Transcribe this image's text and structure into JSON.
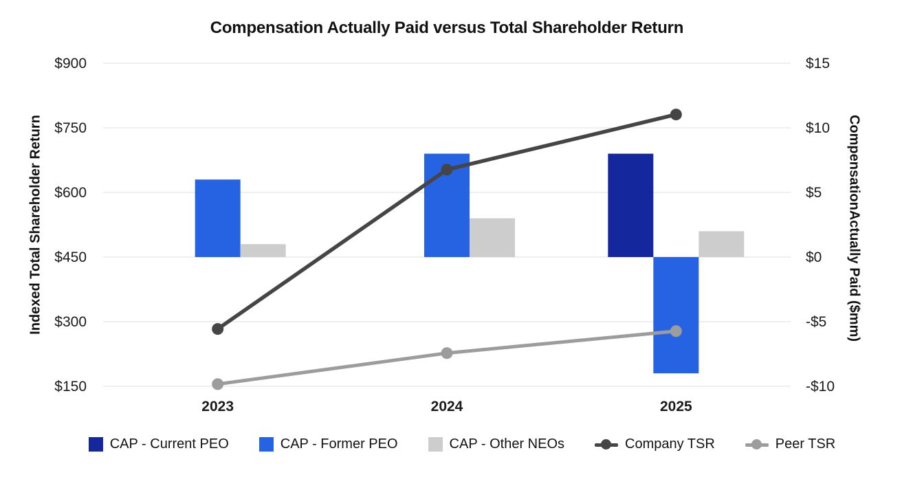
{
  "title": "Compensation Actually Paid versus Total Shareholder Return",
  "chart_data": {
    "type": "combo-bar-line",
    "categories": [
      "2023",
      "2024",
      "2025"
    ],
    "bar_series": [
      {
        "name": "CAP - Current PEO",
        "color": "#15279D",
        "axis": "right",
        "values": [
          null,
          null,
          8
        ]
      },
      {
        "name": "CAP - Former PEO",
        "color": "#2563E3",
        "axis": "right",
        "values": [
          6,
          8,
          -9
        ]
      },
      {
        "name": "CAP - Other NEOs",
        "color": "#CDCDCD",
        "axis": "right",
        "values": [
          1,
          3,
          2
        ]
      }
    ],
    "line_series": [
      {
        "name": "Company TSR",
        "color": "#454545",
        "axis": "left",
        "values": [
          283,
          653,
          781
        ]
      },
      {
        "name": "Peer TSR",
        "color": "#9C9C9C",
        "axis": "left",
        "values": [
          155,
          227,
          278
        ]
      }
    ],
    "left_axis": {
      "label": "Indexed Total Shareholder Return",
      "tick_labels": [
        "$900",
        "$750",
        "$600",
        "$450",
        "$300",
        "$150"
      ],
      "tick_values": [
        900,
        750,
        600,
        450,
        300,
        150
      ],
      "min": 150,
      "max": 900
    },
    "right_axis": {
      "label": "CompensationActually Paid ($mm)",
      "tick_labels": [
        "$15",
        "$10",
        "$5",
        "$0",
        "-$5",
        "-$10"
      ],
      "tick_values": [
        15,
        10,
        5,
        0,
        -5,
        -10
      ],
      "min": -10,
      "max": 15
    },
    "grid": true,
    "gridline_color": "#EFEFEF",
    "text_color": "#1a1a1a",
    "legend_position": "bottom",
    "bar_baseline_right_value": 0
  }
}
